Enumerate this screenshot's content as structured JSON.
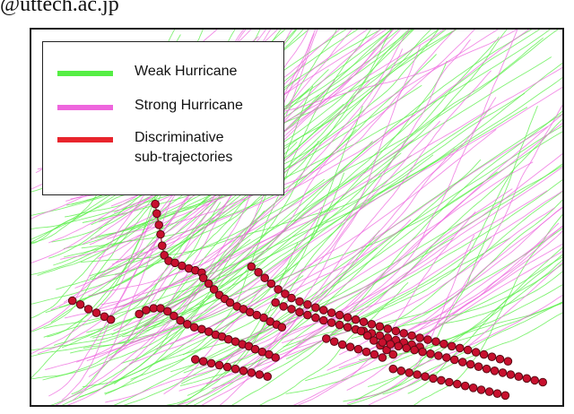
{
  "header_text": "@uttech.ac.jp",
  "chart_data": {
    "type": "scatter",
    "title": "",
    "xlabel": "",
    "ylabel": "",
    "grid": false,
    "legend_position": "top-left",
    "legend": [
      {
        "label": "Weak Hurricane",
        "color": "#55ee44"
      },
      {
        "label": "Strong Hurricane",
        "color": "#ee66dd"
      },
      {
        "label": "Discriminative\nsub-trajectories",
        "color": "#e8242c"
      }
    ],
    "series": [
      {
        "name": "Weak Hurricane",
        "render": "trajectory-lines",
        "color": "#55ee44",
        "track_count": 110
      },
      {
        "name": "Strong Hurricane",
        "render": "trajectory-lines",
        "color": "#ee66dd",
        "track_count": 80
      },
      {
        "name": "Discriminative sub-trajectories",
        "render": "point-chains",
        "color": "#c8102e",
        "chains": [
          {
            "points": [
              [
                0.235,
                0.465
              ],
              [
                0.238,
                0.49
              ],
              [
                0.242,
                0.52
              ],
              [
                0.245,
                0.545
              ],
              [
                0.248,
                0.575
              ],
              [
                0.252,
                0.6
              ],
              [
                0.26,
                0.615
              ],
              [
                0.272,
                0.62
              ],
              [
                0.285,
                0.628
              ],
              [
                0.298,
                0.635
              ],
              [
                0.31,
                0.64
              ],
              [
                0.322,
                0.646
              ]
            ]
          },
          {
            "points": [
              [
                0.325,
                0.66
              ],
              [
                0.335,
                0.675
              ],
              [
                0.345,
                0.69
              ],
              [
                0.355,
                0.705
              ],
              [
                0.365,
                0.715
              ],
              [
                0.375,
                0.725
              ],
              [
                0.388,
                0.735
              ],
              [
                0.4,
                0.742
              ],
              [
                0.412,
                0.75
              ],
              [
                0.425,
                0.758
              ],
              [
                0.438,
                0.765
              ],
              [
                0.45,
                0.775
              ],
              [
                0.462,
                0.783
              ],
              [
                0.472,
                0.79
              ]
            ]
          },
          {
            "points": [
              [
                0.08,
                0.72
              ],
              [
                0.095,
                0.73
              ],
              [
                0.11,
                0.742
              ],
              [
                0.125,
                0.752
              ],
              [
                0.14,
                0.762
              ],
              [
                0.152,
                0.77
              ]
            ]
          },
          {
            "points": [
              [
                0.205,
                0.755
              ],
              [
                0.218,
                0.745
              ],
              [
                0.232,
                0.74
              ],
              [
                0.245,
                0.74
              ],
              [
                0.258,
                0.748
              ],
              [
                0.27,
                0.76
              ],
              [
                0.282,
                0.772
              ],
              [
                0.295,
                0.782
              ],
              [
                0.308,
                0.79
              ],
              [
                0.322,
                0.795
              ],
              [
                0.335,
                0.802
              ],
              [
                0.348,
                0.81
              ],
              [
                0.36,
                0.815
              ],
              [
                0.372,
                0.822
              ],
              [
                0.385,
                0.828
              ],
              [
                0.398,
                0.835
              ],
              [
                0.41,
                0.84
              ],
              [
                0.422,
                0.848
              ],
              [
                0.435,
                0.855
              ],
              [
                0.448,
                0.862
              ],
              [
                0.46,
                0.87
              ]
            ]
          },
          {
            "points": [
              [
                0.415,
                0.63
              ],
              [
                0.428,
                0.645
              ],
              [
                0.44,
                0.66
              ],
              [
                0.452,
                0.675
              ],
              [
                0.465,
                0.69
              ],
              [
                0.478,
                0.702
              ],
              [
                0.49,
                0.713
              ],
              [
                0.505,
                0.722
              ],
              [
                0.52,
                0.73
              ],
              [
                0.535,
                0.738
              ],
              [
                0.55,
                0.745
              ],
              [
                0.565,
                0.752
              ],
              [
                0.58,
                0.758
              ],
              [
                0.595,
                0.764
              ],
              [
                0.61,
                0.77
              ],
              [
                0.625,
                0.776
              ],
              [
                0.64,
                0.782
              ],
              [
                0.655,
                0.788
              ],
              [
                0.67,
                0.794
              ],
              [
                0.685,
                0.8
              ],
              [
                0.7,
                0.806
              ],
              [
                0.715,
                0.812
              ],
              [
                0.73,
                0.818
              ],
              [
                0.745,
                0.823
              ],
              [
                0.76,
                0.828
              ],
              [
                0.775,
                0.834
              ],
              [
                0.79,
                0.84
              ],
              [
                0.805,
                0.845
              ],
              [
                0.82,
                0.85
              ],
              [
                0.835,
                0.856
              ],
              [
                0.85,
                0.862
              ],
              [
                0.865,
                0.868
              ],
              [
                0.88,
                0.874
              ],
              [
                0.895,
                0.88
              ]
            ]
          },
          {
            "points": [
              [
                0.46,
                0.725
              ],
              [
                0.475,
                0.735
              ],
              [
                0.49,
                0.742
              ],
              [
                0.505,
                0.75
              ],
              [
                0.52,
                0.758
              ],
              [
                0.535,
                0.765
              ],
              [
                0.55,
                0.772
              ],
              [
                0.565,
                0.778
              ],
              [
                0.58,
                0.784
              ],
              [
                0.595,
                0.79
              ],
              [
                0.61,
                0.796
              ],
              [
                0.625,
                0.8
              ],
              [
                0.64,
                0.806
              ],
              [
                0.655,
                0.812
              ],
              [
                0.67,
                0.818
              ],
              [
                0.685,
                0.824
              ],
              [
                0.7,
                0.83
              ],
              [
                0.715,
                0.836
              ],
              [
                0.73,
                0.842
              ]
            ]
          },
          {
            "points": [
              [
                0.555,
                0.82
              ],
              [
                0.57,
                0.828
              ],
              [
                0.585,
                0.836
              ],
              [
                0.6,
                0.842
              ],
              [
                0.615,
                0.848
              ],
              [
                0.63,
                0.855
              ],
              [
                0.645,
                0.862
              ],
              [
                0.66,
                0.87
              ]
            ]
          },
          {
            "points": [
              [
                0.62,
                0.8
              ],
              [
                0.632,
                0.812
              ],
              [
                0.644,
                0.825
              ],
              [
                0.656,
                0.838
              ],
              [
                0.668,
                0.85
              ],
              [
                0.68,
                0.862
              ]
            ]
          },
          {
            "points": [
              [
                0.66,
                0.83
              ],
              [
                0.675,
                0.835
              ],
              [
                0.69,
                0.84
              ],
              [
                0.705,
                0.845
              ],
              [
                0.72,
                0.85
              ],
              [
                0.735,
                0.855
              ],
              [
                0.75,
                0.86
              ],
              [
                0.765,
                0.865
              ],
              [
                0.78,
                0.87
              ],
              [
                0.795,
                0.876
              ],
              [
                0.81,
                0.882
              ],
              [
                0.825,
                0.888
              ],
              [
                0.84,
                0.894
              ],
              [
                0.855,
                0.9
              ],
              [
                0.87,
                0.905
              ],
              [
                0.885,
                0.91
              ],
              [
                0.9,
                0.915
              ],
              [
                0.915,
                0.92
              ],
              [
                0.93,
                0.925
              ],
              [
                0.945,
                0.93
              ],
              [
                0.96,
                0.935
              ]
            ]
          },
          {
            "points": [
              [
                0.68,
                0.9
              ],
              [
                0.695,
                0.905
              ],
              [
                0.71,
                0.91
              ],
              [
                0.725,
                0.915
              ],
              [
                0.74,
                0.92
              ],
              [
                0.755,
                0.925
              ],
              [
                0.77,
                0.93
              ],
              [
                0.785,
                0.935
              ],
              [
                0.8,
                0.94
              ],
              [
                0.815,
                0.945
              ],
              [
                0.83,
                0.95
              ],
              [
                0.845,
                0.955
              ],
              [
                0.86,
                0.96
              ],
              [
                0.875,
                0.965
              ],
              [
                0.89,
                0.97
              ]
            ]
          },
          {
            "points": [
              [
                0.31,
                0.875
              ],
              [
                0.325,
                0.88
              ],
              [
                0.34,
                0.885
              ],
              [
                0.355,
                0.89
              ],
              [
                0.37,
                0.895
              ],
              [
                0.385,
                0.9
              ],
              [
                0.4,
                0.905
              ],
              [
                0.415,
                0.91
              ],
              [
                0.43,
                0.915
              ],
              [
                0.445,
                0.92
              ]
            ]
          }
        ]
      }
    ]
  }
}
